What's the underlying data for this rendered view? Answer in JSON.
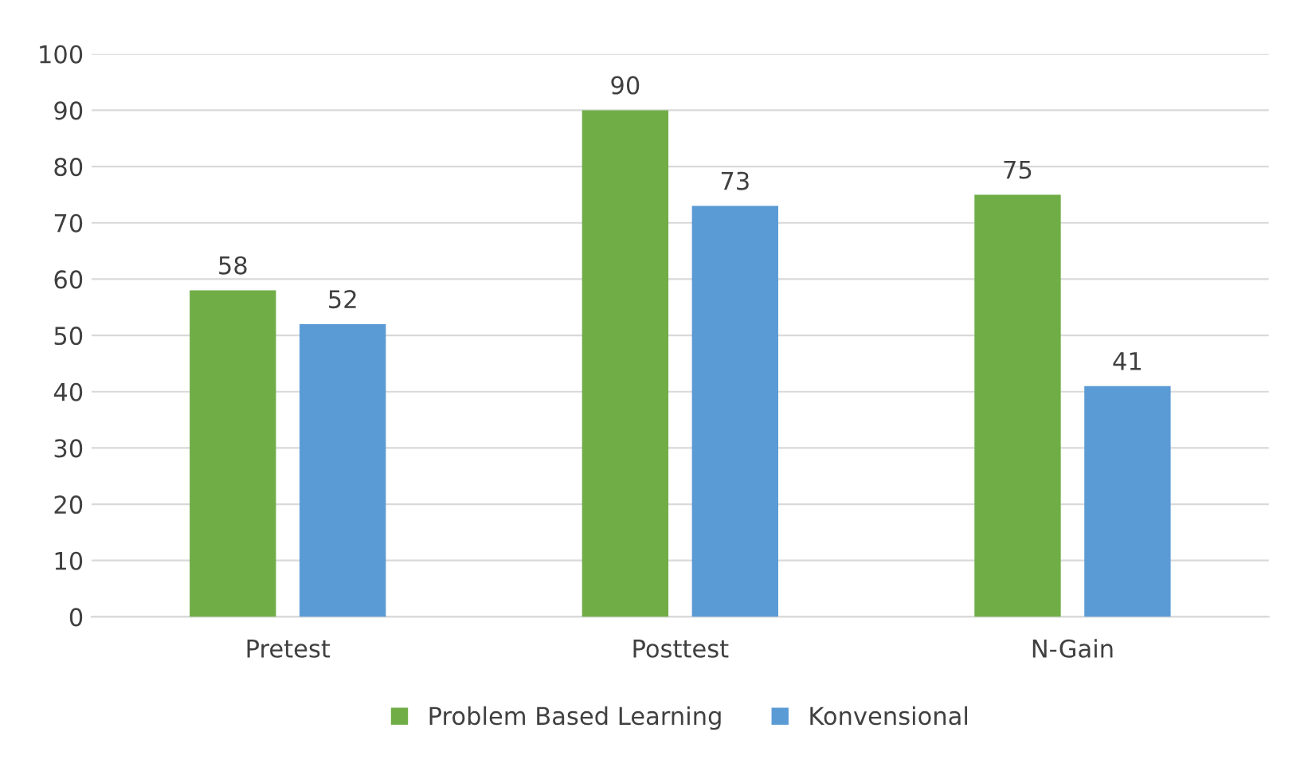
{
  "chart_data": {
    "type": "bar",
    "categories": [
      "Pretest",
      "Posttest",
      "N-Gain"
    ],
    "series": [
      {
        "name": "Problem Based Learning",
        "color": "#70ad47",
        "values": [
          58,
          90,
          75
        ]
      },
      {
        "name": "Konvensional",
        "color": "#5b9bd5",
        "values": [
          52,
          73,
          41
        ]
      }
    ],
    "ylim": [
      0,
      100
    ],
    "yticks": [
      0,
      10,
      20,
      30,
      40,
      50,
      60,
      70,
      80,
      90,
      100
    ],
    "grid": "y",
    "legend": "bottom",
    "data_labels": true
  }
}
